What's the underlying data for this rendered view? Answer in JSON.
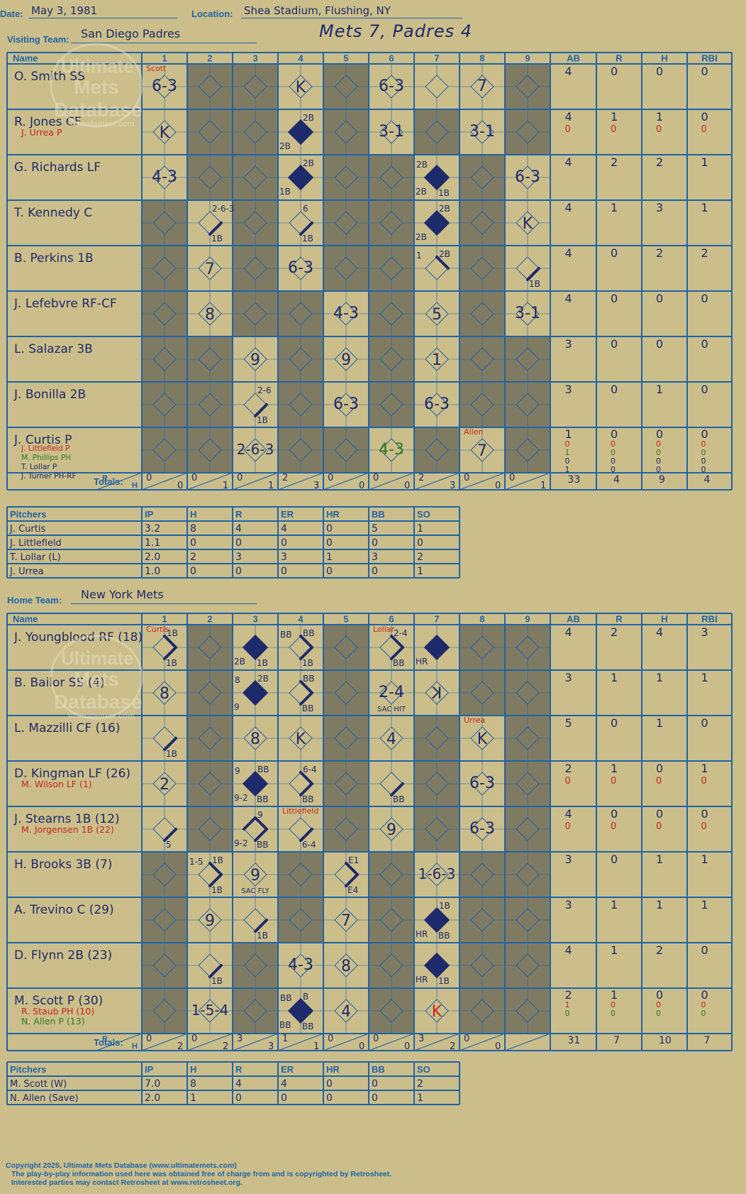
{
  "header": {
    "date_label": "Date:",
    "date": "May 3, 1981",
    "location_label": "Location:",
    "location": "Shea Stadium, Flushing, NY",
    "visiting_label": "Visiting Team:",
    "visiting_team": "San Diego Padres",
    "home_label": "Home Team:",
    "home_team": "New York Mets",
    "result": "Mets 7, Padres 4"
  },
  "watermark": {
    "line1": "Ultimate",
    "line2": "Mets",
    "line3": "Database",
    "url": "ultimatemets.com"
  },
  "grid_headers": [
    "Name",
    "1",
    "2",
    "3",
    "4",
    "5",
    "6",
    "7",
    "8",
    "9",
    "AB",
    "R",
    "H",
    "RBI"
  ],
  "totals_label": "Totals:",
  "rh_r": "R",
  "rh_h": "H",
  "pitcher_headers": [
    "Pitchers",
    "IP",
    "H",
    "R",
    "ER",
    "HR",
    "BB",
    "SO"
  ],
  "colors": {
    "background": "#cbbe8a",
    "grid_line": "#1f63a8",
    "shade": "#7f7b62",
    "ink": "#1d2a6b",
    "red": "#c8261d",
    "green": "#2f7a22"
  },
  "visitors": {
    "rows": [
      {
        "name": "O. Smith SS",
        "subs": [],
        "stats": [
          [
            "4",
            "0",
            "0",
            "0"
          ]
        ],
        "shaded": [
          2,
          3,
          5,
          9
        ],
        "cells": [
          {
            "inn": 1,
            "t": "6-3",
            "s": "above",
            "note": "Scott"
          },
          {
            "inn": 4,
            "t": "K",
            "s": "centered"
          },
          {
            "inn": 6,
            "t": "6-3",
            "s": "above"
          },
          {
            "inn": 8,
            "t": "7",
            "s": "above"
          }
        ]
      },
      {
        "name": "R. Jones CF",
        "subs": [
          {
            "name": "J. Urrea P",
            "c": "red"
          }
        ],
        "stats": [
          [
            "4",
            "1",
            "1",
            "0"
          ],
          [
            "0",
            "0",
            "0",
            "0"
          ]
        ],
        "shaded": [
          2,
          3,
          5,
          7,
          9
        ],
        "cells": [
          {
            "inn": 1,
            "t": "K",
            "s": "centered"
          },
          {
            "inn": 4,
            "run": true,
            "tr": "2B",
            "bl": "2B"
          },
          {
            "inn": 6,
            "t": "3-1",
            "s": "above"
          },
          {
            "inn": 8,
            "t": "3-1",
            "s": "above"
          }
        ]
      },
      {
        "name": "G. Richards LF",
        "subs": [],
        "stats": [
          [
            "4",
            "2",
            "2",
            "1"
          ]
        ],
        "shaded": [
          2,
          3,
          5,
          6,
          8
        ],
        "cells": [
          {
            "inn": 1,
            "t": "4-3",
            "s": "above"
          },
          {
            "inn": 4,
            "run": true,
            "tr": "2B",
            "bl": "1B"
          },
          {
            "inn": 7,
            "run": true,
            "tl": "2B",
            "bl": "2B",
            "br": "1B"
          },
          {
            "inn": 9,
            "t": "6-3",
            "s": "above"
          }
        ]
      },
      {
        "name": "T. Kennedy C",
        "subs": [],
        "stats": [
          [
            "4",
            "1",
            "3",
            "1"
          ]
        ],
        "shaded": [
          1,
          3,
          5,
          6,
          8
        ],
        "cells": [
          {
            "inn": 2,
            "first": true,
            "br": "1B",
            "tr": "2-6-3"
          },
          {
            "inn": 4,
            "first": true,
            "br": "1B",
            "tr": "6"
          },
          {
            "inn": 7,
            "run": true,
            "tr": "2B",
            "bl": "2B"
          },
          {
            "inn": 9,
            "t": "K",
            "s": "centered"
          }
        ]
      },
      {
        "name": "B. Perkins 1B",
        "subs": [],
        "stats": [
          [
            "4",
            "0",
            "2",
            "2"
          ]
        ],
        "shaded": [
          1,
          3,
          5,
          6,
          8
        ],
        "cells": [
          {
            "inn": 2,
            "t": "7",
            "s": "centered"
          },
          {
            "inn": 4,
            "t": "6-3",
            "s": "above"
          },
          {
            "inn": 7,
            "second": true,
            "tr": "2B",
            "tl": "1"
          },
          {
            "inn": 9,
            "first": true,
            "br": "1B"
          }
        ]
      },
      {
        "name": "J. Lefebvre RF-CF",
        "subs": [],
        "stats": [
          [
            "4",
            "0",
            "0",
            "0"
          ]
        ],
        "shaded": [
          1,
          3,
          4,
          6,
          8
        ],
        "cells": [
          {
            "inn": 2,
            "t": "8",
            "s": "centered"
          },
          {
            "inn": 5,
            "t": "4-3",
            "s": "above"
          },
          {
            "inn": 7,
            "t": "5",
            "s": "centered"
          },
          {
            "inn": 9,
            "t": "3-1",
            "s": "above"
          }
        ]
      },
      {
        "name": "L. Salazar 3B",
        "subs": [],
        "stats": [
          [
            "3",
            "0",
            "0",
            "0"
          ]
        ],
        "shaded": [
          1,
          2,
          4,
          6,
          8,
          9
        ],
        "cells": [
          {
            "inn": 3,
            "t": "9",
            "s": "centered"
          },
          {
            "inn": 5,
            "t": "9",
            "s": "centered"
          },
          {
            "inn": 7,
            "t": "1",
            "s": "centered"
          }
        ]
      },
      {
        "name": "J. Bonilla 2B",
        "subs": [],
        "stats": [
          [
            "3",
            "0",
            "1",
            "0"
          ]
        ],
        "shaded": [
          1,
          2,
          4,
          6,
          8,
          9
        ],
        "cells": [
          {
            "inn": 3,
            "first": true,
            "br": "1B",
            "tr": "2-6"
          },
          {
            "inn": 5,
            "t": "6-3",
            "s": "above"
          },
          {
            "inn": 7,
            "t": "6-3",
            "s": "above"
          }
        ]
      },
      {
        "name": "J. Curtis P",
        "subs": [
          {
            "name": "J. Littlefield P",
            "c": "red"
          },
          {
            "name": "M. Phillips PH",
            "c": "green"
          },
          {
            "name": "T. Lollar P",
            "c": "ink"
          },
          {
            "name": "J. Turner PH-RF",
            "c": "ink"
          }
        ],
        "stats": [
          [
            "1",
            "0",
            "0",
            "0"
          ],
          [
            "0",
            "0",
            "0",
            "0"
          ],
          [
            "1",
            "0",
            "0",
            "0"
          ],
          [
            "0",
            "0",
            "0",
            "0"
          ],
          [
            "1",
            "0",
            "0",
            "0"
          ]
        ],
        "shaded": [
          1,
          2,
          4,
          5,
          7,
          9
        ],
        "cells": [
          {
            "inn": 3,
            "t": "2-6-3",
            "s": "above"
          },
          {
            "inn": 6,
            "t": "4-3",
            "s": "above",
            "c": "green"
          },
          {
            "inn": 8,
            "t": "7",
            "s": "centered",
            "note": "Allen"
          }
        ]
      }
    ],
    "totals": [
      [
        "0",
        "0"
      ],
      [
        "0",
        "1"
      ],
      [
        "0",
        "1"
      ],
      [
        "2",
        "3"
      ],
      [
        "0",
        "0"
      ],
      [
        "0",
        "0"
      ],
      [
        "2",
        "3"
      ],
      [
        "0",
        "0"
      ],
      [
        "0",
        "1"
      ]
    ],
    "totals_stats": [
      "33",
      "4",
      "9",
      "4"
    ],
    "pitchers": [
      [
        "J. Curtis",
        "3.2",
        "8",
        "4",
        "4",
        "0",
        "5",
        "1"
      ],
      [
        "J. Littlefield",
        "1.1",
        "0",
        "0",
        "0",
        "0",
        "0",
        "0"
      ],
      [
        "T. Lollar (L)",
        "2.0",
        "2",
        "3",
        "3",
        "1",
        "3",
        "2"
      ],
      [
        "J. Urrea",
        "1.0",
        "0",
        "0",
        "0",
        "0",
        "0",
        "1"
      ]
    ]
  },
  "home": {
    "rows": [
      {
        "name": "J. Youngblood RF (18)",
        "subs": [],
        "stats": [
          [
            "4",
            "2",
            "4",
            "3"
          ]
        ],
        "shaded": [
          2,
          5,
          8,
          9
        ],
        "cells": [
          {
            "inn": 1,
            "first": true,
            "second": true,
            "tr": "1B",
            "br": "1B",
            "note": "Curtis"
          },
          {
            "inn": 3,
            "run": true,
            "bl": "2B",
            "br": "1B"
          },
          {
            "inn": 4,
            "first": true,
            "second": true,
            "tl": "BB",
            "tr": "BB",
            "br": "1B"
          },
          {
            "inn": 6,
            "first": true,
            "second": true,
            "tr": "2-4",
            "br": "BB",
            "note": "Lollar"
          },
          {
            "inn": 7,
            "run": true,
            "bl": "HR"
          }
        ]
      },
      {
        "name": "B. Bailor SS (4)",
        "subs": [],
        "stats": [
          [
            "3",
            "1",
            "1",
            "1"
          ]
        ],
        "shaded": [
          2,
          5,
          8,
          9
        ],
        "cells": [
          {
            "inn": 1,
            "t": "8",
            "s": "centered"
          },
          {
            "inn": 3,
            "run": true,
            "tl": "8",
            "tr": "2B",
            "bl": "9"
          },
          {
            "inn": 4,
            "first": true,
            "second": true,
            "tr": "BB",
            "br": "BB"
          },
          {
            "inn": 6,
            "t": "2-4",
            "s": "above",
            "sub": "SAC HIT"
          },
          {
            "inn": 7,
            "t": "K",
            "s": "centered",
            "mirror": true
          }
        ]
      },
      {
        "name": "L. Mazzilli CF (16)",
        "subs": [],
        "stats": [
          [
            "5",
            "0",
            "1",
            "0"
          ]
        ],
        "shaded": [
          2,
          5,
          7,
          9
        ],
        "cells": [
          {
            "inn": 1,
            "first": true,
            "br": "1B"
          },
          {
            "inn": 3,
            "t": "8",
            "s": "centered"
          },
          {
            "inn": 4,
            "t": "K",
            "s": "centered"
          },
          {
            "inn": 6,
            "t": "4",
            "s": "centered"
          },
          {
            "inn": 8,
            "t": "K",
            "s": "centered",
            "note": "Urrea"
          }
        ]
      },
      {
        "name": "D. Kingman LF (26)",
        "subs": [
          {
            "name": "M. Wilson LF (1)",
            "c": "red"
          }
        ],
        "stats": [
          [
            "2",
            "1",
            "0",
            "1"
          ],
          [
            "0",
            "0",
            "0",
            "0"
          ]
        ],
        "shaded": [
          2,
          5,
          7,
          9
        ],
        "cells": [
          {
            "inn": 1,
            "t": "2",
            "s": "centered"
          },
          {
            "inn": 3,
            "run": true,
            "tl": "9",
            "tr": "BB",
            "bl": "9-2",
            "br": "BB"
          },
          {
            "inn": 4,
            "first": true,
            "second": true,
            "tr": "6-4",
            "br": "BB"
          },
          {
            "inn": 6,
            "first": true,
            "br": "BB"
          },
          {
            "inn": 8,
            "t": "6-3",
            "s": "above"
          }
        ]
      },
      {
        "name": "J. Stearns 1B (12)",
        "subs": [
          {
            "name": "M. Jorgensen 1B (22)",
            "c": "red"
          }
        ],
        "stats": [
          [
            "4",
            "0",
            "0",
            "0"
          ],
          [
            "0",
            "0",
            "0",
            "0"
          ]
        ],
        "shaded": [
          2,
          5,
          7,
          9
        ],
        "cells": [
          {
            "inn": 1,
            "first": true,
            "br": "5"
          },
          {
            "inn": 3,
            "first": true,
            "second": true,
            "third": true,
            "tr": "9",
            "bl": "9-2",
            "br": "BB"
          },
          {
            "inn": 4,
            "first": true,
            "br": "6-4",
            "note": "Littlefield"
          },
          {
            "inn": 6,
            "t": "9",
            "s": "centered"
          },
          {
            "inn": 8,
            "t": "6-3",
            "s": "above"
          }
        ]
      },
      {
        "name": "H. Brooks 3B (7)",
        "subs": [],
        "stats": [
          [
            "3",
            "0",
            "1",
            "1"
          ]
        ],
        "shaded": [
          1,
          4,
          6,
          8,
          9
        ],
        "cells": [
          {
            "inn": 2,
            "first": true,
            "second": true,
            "tl": "1-5",
            "tr": "1B",
            "br": "1B"
          },
          {
            "inn": 3,
            "t": "9",
            "s": "centered",
            "sub": "SAC FLY"
          },
          {
            "inn": 5,
            "first": true,
            "second": true,
            "tr": "E1",
            "br": "E4"
          },
          {
            "inn": 7,
            "t": "1-6-3",
            "s": "above"
          }
        ]
      },
      {
        "name": "A. Trevino C (29)",
        "subs": [],
        "stats": [
          [
            "3",
            "1",
            "1",
            "1"
          ]
        ],
        "shaded": [
          1,
          4,
          6,
          8,
          9
        ],
        "cells": [
          {
            "inn": 2,
            "t": "9",
            "s": "centered"
          },
          {
            "inn": 3,
            "first": true,
            "br": "1B"
          },
          {
            "inn": 5,
            "t": "7",
            "s": "centered"
          },
          {
            "inn": 7,
            "run": true,
            "tr": "1B",
            "bl": "HR",
            "br": "BB"
          }
        ]
      },
      {
        "name": "D. Flynn 2B (23)",
        "subs": [],
        "stats": [
          [
            "4",
            "1",
            "2",
            "0"
          ]
        ],
        "shaded": [
          1,
          3,
          6,
          8,
          9
        ],
        "cells": [
          {
            "inn": 2,
            "first": true,
            "br": "1B"
          },
          {
            "inn": 4,
            "t": "4-3",
            "s": "above"
          },
          {
            "inn": 5,
            "t": "8",
            "s": "centered"
          },
          {
            "inn": 7,
            "run": true,
            "bl": "HR",
            "br": "1B"
          }
        ]
      },
      {
        "name": "M. Scott P (30)",
        "subs": [
          {
            "name": "R. Staub PH (10)",
            "c": "red"
          },
          {
            "name": "N. Allen P (13)",
            "c": "green"
          }
        ],
        "stats": [
          [
            "2",
            "1",
            "0",
            "0"
          ],
          [
            "1",
            "0",
            "0",
            "0"
          ],
          [
            "0",
            "0",
            "0",
            "0"
          ]
        ],
        "shaded": [
          1,
          3,
          6,
          8,
          9
        ],
        "cells": [
          {
            "inn": 2,
            "t": "1-5-4",
            "s": "above"
          },
          {
            "inn": 4,
            "run": true,
            "tl": "BB",
            "tr": "B",
            "bl": "BB",
            "br": "BB"
          },
          {
            "inn": 5,
            "t": "4",
            "s": "centered"
          },
          {
            "inn": 7,
            "t": "K",
            "s": "centered",
            "c": "red"
          }
        ]
      }
    ],
    "totals": [
      [
        "0",
        "2"
      ],
      [
        "0",
        "2"
      ],
      [
        "3",
        "3"
      ],
      [
        "1",
        "1"
      ],
      [
        "0",
        "0"
      ],
      [
        "0",
        "0"
      ],
      [
        "3",
        "2"
      ],
      [
        "0",
        "0"
      ]
    ],
    "totals_stats": [
      "31",
      "7",
      "10",
      "7"
    ],
    "pitchers": [
      [
        "M. Scott (W)",
        "7.0",
        "8",
        "4",
        "4",
        "0",
        "0",
        "2"
      ],
      [
        "N. Allen (Save)",
        "2.0",
        "1",
        "0",
        "0",
        "0",
        "0",
        "1"
      ]
    ]
  },
  "footer": {
    "line1": "Copyright 2025, Ultimate Mets Database (www.ultimatemets.com)",
    "line2": "The play-by-play information used here was obtained free of charge from and is copyrighted by Retrosheet.",
    "line3": "Interested parties may contact Retrosheet at www.retrosheet.org."
  }
}
